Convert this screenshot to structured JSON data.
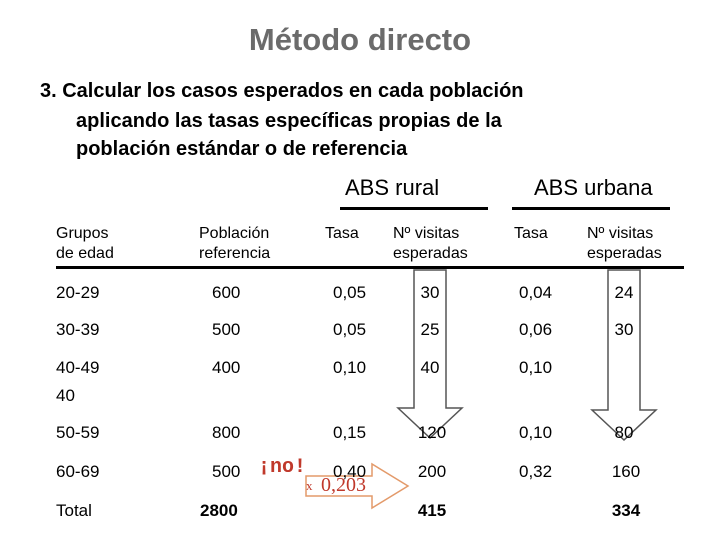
{
  "title": "Método directo",
  "subtitle": {
    "line1": "3. Calcular los casos esperados en cada población",
    "line2": "aplicando las tasas específicas propias de la",
    "line3": "población estándar o de referencia"
  },
  "groups": {
    "rural": "ABS rural",
    "urbana": "ABS urbana"
  },
  "headers": {
    "grupos": [
      "Grupos",
      "de edad"
    ],
    "poblacion": [
      "Población",
      "referencia"
    ],
    "tasa": "Tasa",
    "visitas": [
      "Nº visitas",
      "esperadas"
    ]
  },
  "rows": [
    {
      "grupo": "20-29",
      "poblacion": "600",
      "tasa_r": "0,05",
      "visitas_r": "30",
      "tasa_u": "0,04",
      "visitas_u": "24"
    },
    {
      "grupo": "30-39",
      "poblacion": "500",
      "tasa_r": "0,05",
      "visitas_r": "25",
      "tasa_u": "0,06",
      "visitas_u": "30"
    },
    {
      "grupo": "40-49",
      "grupo_extra": "40",
      "poblacion": "400",
      "tasa_r": "0,10",
      "visitas_r": "40",
      "tasa_u": "0,10",
      "visitas_u": ""
    },
    {
      "grupo": "50-59",
      "poblacion": "800",
      "tasa_r": "0,15",
      "visitas_r": "120",
      "tasa_u": "0,10",
      "visitas_u": "80"
    },
    {
      "grupo": "60-69",
      "poblacion": "500",
      "tasa_r": "0,40",
      "visitas_r": "200",
      "tasa_u": "0,32",
      "visitas_u": "160"
    }
  ],
  "total": {
    "label": "Total",
    "poblacion": "2800",
    "visitas_r": "415",
    "visitas_u": "334"
  },
  "annotation": {
    "no": "¡no!",
    "x": "x",
    "value": "0,203"
  },
  "colors": {
    "title": "#6b6b6b",
    "annotation": "#c0392b",
    "arrow_stroke": "#555555"
  },
  "icons": [
    "down-arrow-icon",
    "right-arrow-icon"
  ]
}
